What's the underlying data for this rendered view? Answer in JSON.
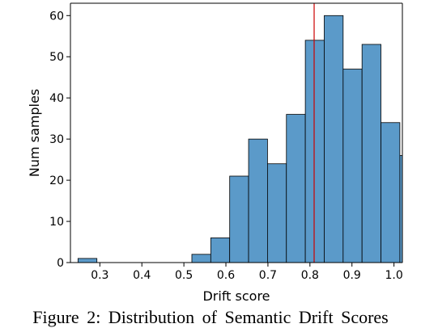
{
  "chart_data": {
    "type": "bar",
    "subtype": "histogram",
    "xlabel": "Drift score",
    "ylabel": "Num samples",
    "xlim": [
      0.23,
      1.02
    ],
    "ylim": [
      0,
      63
    ],
    "x_ticks": [
      "0.3",
      "0.4",
      "0.5",
      "0.6",
      "0.7",
      "0.8",
      "0.9",
      "1.0"
    ],
    "y_ticks": [
      "0",
      "10",
      "20",
      "30",
      "40",
      "50",
      "60"
    ],
    "bins": [
      {
        "x0": 0.248,
        "x1": 0.293,
        "count": 1
      },
      {
        "x0": 0.293,
        "x1": 0.339,
        "count": 0
      },
      {
        "x0": 0.339,
        "x1": 0.384,
        "count": 0
      },
      {
        "x0": 0.384,
        "x1": 0.429,
        "count": 0
      },
      {
        "x0": 0.429,
        "x1": 0.474,
        "count": 0
      },
      {
        "x0": 0.474,
        "x1": 0.519,
        "count": 0
      },
      {
        "x0": 0.519,
        "x1": 0.564,
        "count": 2
      },
      {
        "x0": 0.564,
        "x1": 0.609,
        "count": 6
      },
      {
        "x0": 0.609,
        "x1": 0.654,
        "count": 21
      },
      {
        "x0": 0.654,
        "x1": 0.699,
        "count": 30
      },
      {
        "x0": 0.699,
        "x1": 0.744,
        "count": 24
      },
      {
        "x0": 0.744,
        "x1": 0.789,
        "count": 36
      },
      {
        "x0": 0.789,
        "x1": 0.834,
        "count": 54
      },
      {
        "x0": 0.834,
        "x1": 0.879,
        "count": 60
      },
      {
        "x0": 0.879,
        "x1": 0.924,
        "count": 47
      },
      {
        "x0": 0.924,
        "x1": 0.969,
        "count": 53
      },
      {
        "x0": 0.969,
        "x1": 1.014,
        "count": 34
      },
      {
        "x0": 1.014,
        "x1": 1.059,
        "count": 26
      }
    ],
    "reference_line": {
      "x": 0.81,
      "color": "#cc0000"
    },
    "bar_color": "#5b9ac9",
    "bar_edge_color": "#000000",
    "grid": false
  },
  "caption": "Figure 2:  Distribution of Semantic Drift Scores"
}
